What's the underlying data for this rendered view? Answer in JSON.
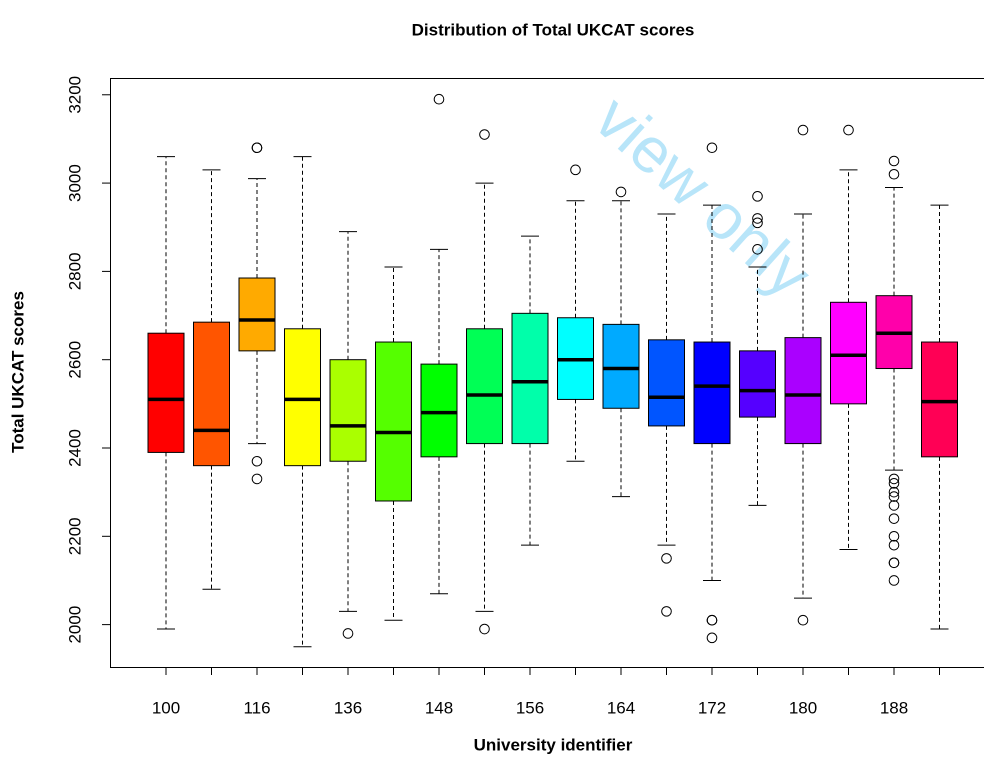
{
  "chart_data": {
    "type": "box",
    "title": "Distribution of Total UKCAT scores",
    "xlabel": "University identifier",
    "ylabel": "Total UKCAT scores",
    "watermark": "view only",
    "categories": [
      "100",
      null,
      "116",
      null,
      "136",
      null,
      "148",
      null,
      "156",
      null,
      "164",
      null,
      "172",
      null,
      "180",
      null,
      "188",
      null
    ],
    "colors": [
      "#FF0000",
      "#FF5500",
      "#FFAA00",
      "#FFFF00",
      "#AAFF00",
      "#55FF00",
      "#00FF00",
      "#00FF55",
      "#00FFAA",
      "#00FFFF",
      "#00AAFF",
      "#0055FF",
      "#0000FF",
      "#5500FF",
      "#AA00FF",
      "#FF00FF",
      "#FF00AA",
      "#FF0055"
    ],
    "boxes": [
      {
        "low": 1990,
        "q1": 2390,
        "median": 2510,
        "q3": 2660,
        "high": 3060,
        "outliers": []
      },
      {
        "low": 2080,
        "q1": 2360,
        "median": 2440,
        "q3": 2685,
        "high": 3030,
        "outliers": []
      },
      {
        "low": 2410,
        "q1": 2620,
        "median": 2690,
        "q3": 2785,
        "high": 3010,
        "outliers": [
          2370,
          2330,
          3080,
          3080
        ]
      },
      {
        "low": 1950,
        "q1": 2360,
        "median": 2510,
        "q3": 2670,
        "high": 3060,
        "outliers": []
      },
      {
        "low": 2030,
        "q1": 2370,
        "median": 2450,
        "q3": 2600,
        "high": 2890,
        "outliers": [
          1980
        ]
      },
      {
        "low": 2010,
        "q1": 2280,
        "median": 2435,
        "q3": 2640,
        "high": 2810,
        "outliers": []
      },
      {
        "low": 2070,
        "q1": 2380,
        "median": 2480,
        "q3": 2590,
        "high": 2850,
        "outliers": [
          3190
        ]
      },
      {
        "low": 2030,
        "q1": 2410,
        "median": 2520,
        "q3": 2670,
        "high": 3000,
        "outliers": [
          1990,
          3110
        ]
      },
      {
        "low": 2180,
        "q1": 2410,
        "median": 2550,
        "q3": 2705,
        "high": 2880,
        "outliers": []
      },
      {
        "low": 2370,
        "q1": 2510,
        "median": 2600,
        "q3": 2695,
        "high": 2960,
        "outliers": [
          3030
        ]
      },
      {
        "low": 2290,
        "q1": 2490,
        "median": 2580,
        "q3": 2680,
        "high": 2960,
        "outliers": [
          2980
        ]
      },
      {
        "low": 2180,
        "q1": 2450,
        "median": 2515,
        "q3": 2645,
        "high": 2930,
        "outliers": [
          2150,
          2030
        ]
      },
      {
        "low": 2100,
        "q1": 2410,
        "median": 2540,
        "q3": 2640,
        "high": 2950,
        "outliers": [
          2010,
          2010,
          1970,
          3080
        ]
      },
      {
        "low": 2270,
        "q1": 2470,
        "median": 2530,
        "q3": 2620,
        "high": 2810,
        "outliers": [
          2850,
          2910,
          2920,
          2970
        ]
      },
      {
        "low": 2060,
        "q1": 2410,
        "median": 2520,
        "q3": 2650,
        "high": 2930,
        "outliers": [
          2010,
          3120
        ]
      },
      {
        "low": 2170,
        "q1": 2500,
        "median": 2610,
        "q3": 2730,
        "high": 3030,
        "outliers": [
          3120
        ]
      },
      {
        "low": 2350,
        "q1": 2580,
        "median": 2660,
        "q3": 2745,
        "high": 2990,
        "outliers": [
          2330,
          2320,
          2300,
          2290,
          2270,
          2240,
          2200,
          2180,
          2140,
          2140,
          2100,
          3020,
          3050
        ]
      },
      {
        "low": 1990,
        "q1": 2380,
        "median": 2505,
        "q3": 2640,
        "high": 2950,
        "outliers": []
      }
    ],
    "ylim": [
      1904,
      3238
    ],
    "yticks": [
      2000,
      2200,
      2400,
      2600,
      2800,
      3000,
      3200
    ]
  }
}
